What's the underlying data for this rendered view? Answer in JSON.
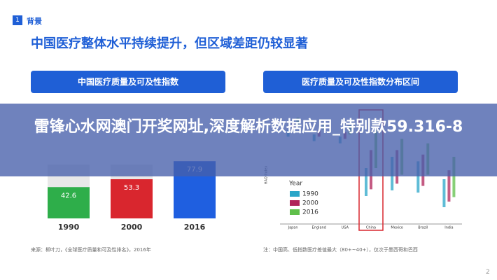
{
  "header": {
    "section_number": "1",
    "section": "背景",
    "title": "中国医疗整体水平持续提升，但区域差距仍较显著",
    "left_tab": "中国医疗质量及可及性指数",
    "right_tab": "医疗质量及可及性指数分布区间"
  },
  "banner": {
    "text": "雷锋心水网澳门开奖网址,深度解析数据应用_特别款59.316-8"
  },
  "footer": {
    "source": "来源：柳叶刀，《全球医疗质量和可及性排名》，2016年",
    "note": "注：中国高、低指数医疗差值最大（80+~40+），仅次于墨西哥和巴西",
    "page": "2"
  },
  "chart_data": [
    {
      "type": "bar",
      "categories": [
        "1990",
        "2000",
        "2016"
      ],
      "values": [
        42.6,
        53.3,
        77.9
      ],
      "colors": [
        "#2eae4a",
        "#d9262e",
        "#1f5fe0"
      ],
      "ylim": [
        0,
        100
      ]
    },
    {
      "type": "range",
      "y_label": "HAQ Index",
      "legend_title": "Year",
      "categories": [
        "Japan",
        "England",
        "USA",
        "China",
        "Mexico",
        "Brazil",
        "India"
      ],
      "highlight": "China",
      "ylim": [
        0,
        100
      ],
      "series": [
        {
          "name": "1990",
          "color": "#2aa6c8",
          "low": [
            78,
            74,
            72,
            25,
            30,
            28,
            15
          ],
          "high": [
            84,
            80,
            78,
            50,
            60,
            56,
            40
          ]
        },
        {
          "name": "2000",
          "color": "#b0245a",
          "low": [
            84,
            78,
            76,
            31,
            36,
            34,
            20
          ],
          "high": [
            90,
            84,
            82,
            66,
            66,
            62,
            48
          ]
        },
        {
          "name": "2016",
          "color": "#5fbf4a",
          "low": [
            88,
            84,
            80,
            50,
            44,
            44,
            24
          ],
          "high": [
            95,
            90,
            88,
            84,
            76,
            72,
            60
          ]
        }
      ]
    }
  ]
}
